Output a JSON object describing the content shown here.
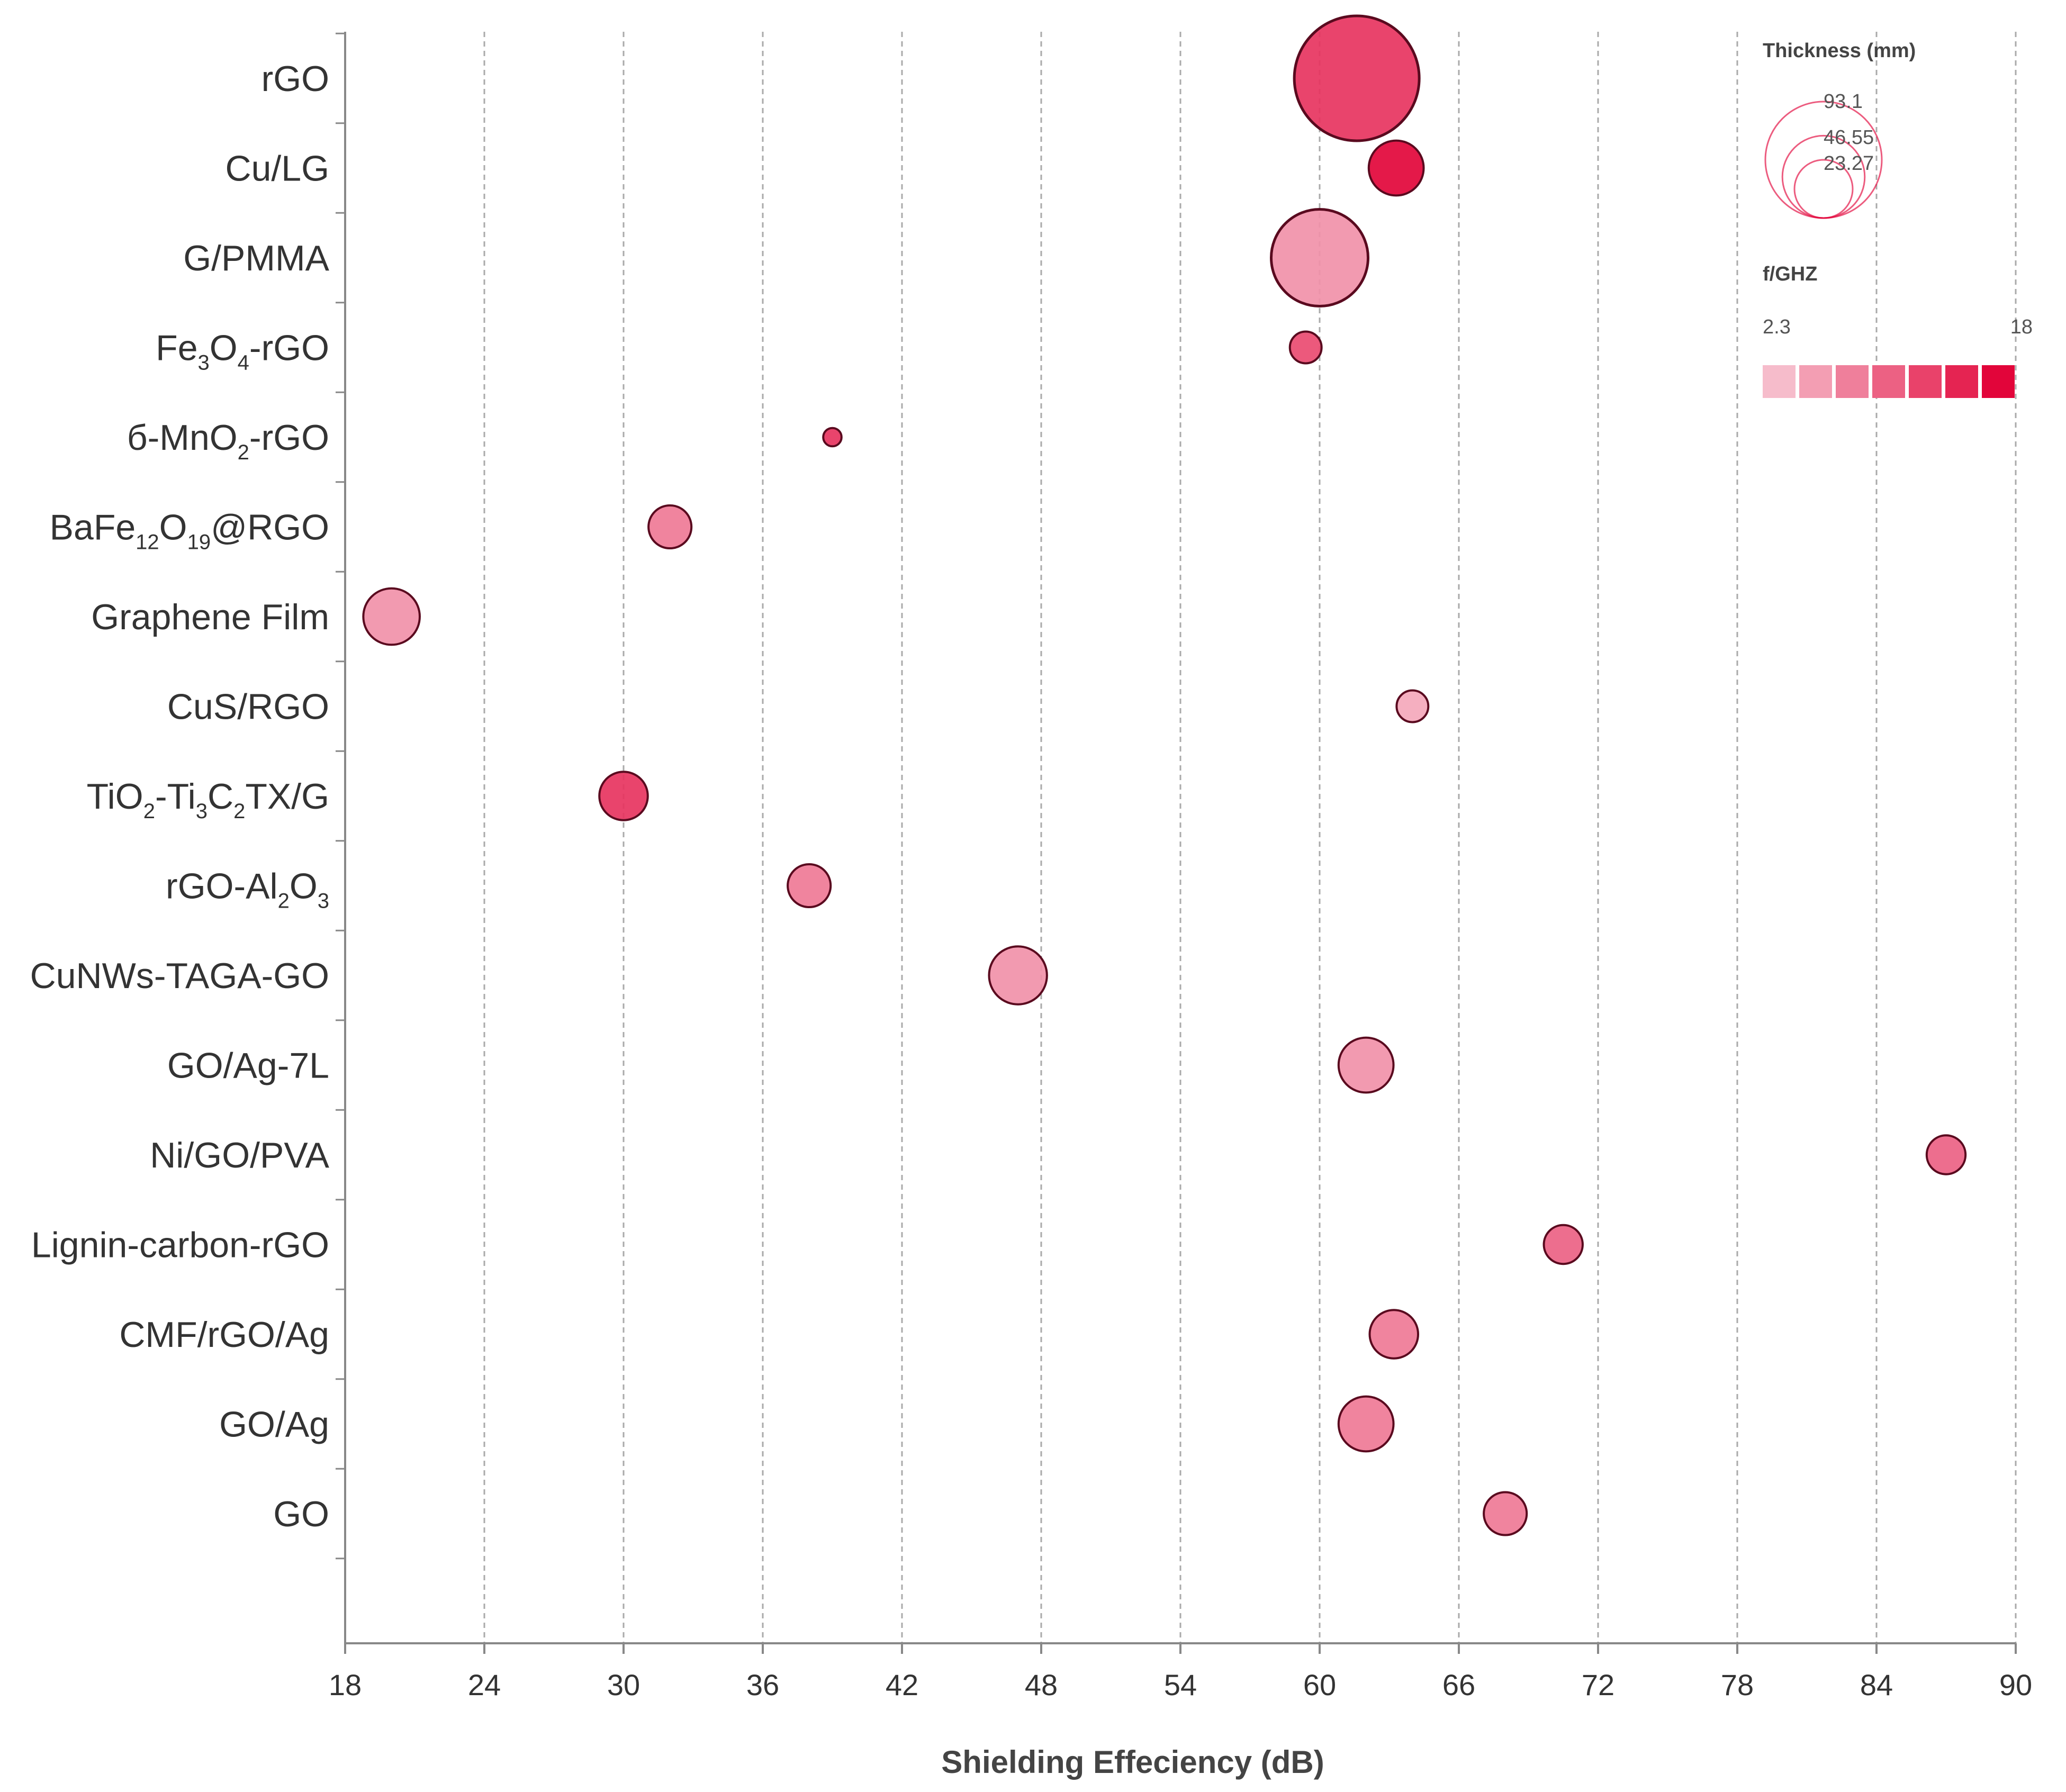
{
  "chart_data": {
    "type": "scatter",
    "subtype": "bubble",
    "xlabel": "Shielding Effeciency (dB)",
    "ylabel": "",
    "xlim": [
      18,
      90
    ],
    "xticks": [
      "18",
      "24",
      "30",
      "36",
      "42",
      "48",
      "54",
      "60",
      "66",
      "72",
      "78",
      "84",
      "90"
    ],
    "grid": "vertical dashed",
    "points": [
      {
        "label": "rGO",
        "label_parts": [
          {
            "t": "rGO"
          }
        ],
        "x": 61.6,
        "thickness": 93.1,
        "freq": 14
      },
      {
        "label": "Cu/LG",
        "label_parts": [
          {
            "t": "Cu/LG"
          }
        ],
        "x": 63.3,
        "thickness": 18,
        "freq": 18
      },
      {
        "label": "G/PMMA",
        "label_parts": [
          {
            "t": "G/PMMA"
          }
        ],
        "x": 60.0,
        "thickness": 56,
        "freq": 6
      },
      {
        "label": "Fe3O4-rGO",
        "label_parts": [
          {
            "t": "Fe"
          },
          {
            "t": "3",
            "sub": true
          },
          {
            "t": "O"
          },
          {
            "t": "4",
            "sub": true
          },
          {
            "t": "-rGO"
          }
        ],
        "x": 59.4,
        "thickness": 6,
        "freq": 12
      },
      {
        "label": "б-MnO2-rGO",
        "label_parts": [
          {
            "t": "б-MnO"
          },
          {
            "t": "2",
            "sub": true
          },
          {
            "t": "-rGO"
          }
        ],
        "x": 39.0,
        "thickness": 2,
        "freq": 14
      },
      {
        "label": "BaFe12O19@RGO",
        "label_parts": [
          {
            "t": "BaFe"
          },
          {
            "t": "12",
            "sub": true
          },
          {
            "t": "O"
          },
          {
            "t": "19",
            "sub": true
          },
          {
            "t": "@RGO"
          }
        ],
        "x": 32.0,
        "thickness": 11,
        "freq": 8
      },
      {
        "label": "Graphene Film",
        "label_parts": [
          {
            "t": "Graphene Film"
          }
        ],
        "x": 20.0,
        "thickness": 19,
        "freq": 6
      },
      {
        "label": "CuS/RGO",
        "label_parts": [
          {
            "t": "CuS/RGO"
          }
        ],
        "x": 64.0,
        "thickness": 6,
        "freq": 4
      },
      {
        "label": "TiO2-Ti3C2TX/G",
        "label_parts": [
          {
            "t": "TiO"
          },
          {
            "t": "2",
            "sub": true
          },
          {
            "t": "-Ti"
          },
          {
            "t": "3",
            "sub": true
          },
          {
            "t": "C"
          },
          {
            "t": "2",
            "sub": true
          },
          {
            "t": "TX/G"
          }
        ],
        "x": 30.0,
        "thickness": 14,
        "freq": 14
      },
      {
        "label": "rGO-Al2O3",
        "label_parts": [
          {
            "t": "rGO-Al"
          },
          {
            "t": "2",
            "sub": true
          },
          {
            "t": "O"
          },
          {
            "t": "3",
            "sub": true
          }
        ],
        "x": 38.0,
        "thickness": 11,
        "freq": 8
      },
      {
        "label": "CuNWs-TAGA-GO",
        "label_parts": [
          {
            "t": "CuNWs-TAGA-GO"
          }
        ],
        "x": 47.0,
        "thickness": 20,
        "freq": 6
      },
      {
        "label": "GO/Ag-7L",
        "label_parts": [
          {
            "t": "GO/Ag-7L"
          }
        ],
        "x": 62.0,
        "thickness": 18,
        "freq": 6
      },
      {
        "label": "Ni/GO/PVA",
        "label_parts": [
          {
            "t": "Ni/GO/PVA"
          }
        ],
        "x": 87.0,
        "thickness": 9,
        "freq": 10
      },
      {
        "label": "Lignin-carbon-rGO",
        "label_parts": [
          {
            "t": "Lignin-carbon-rGO"
          }
        ],
        "x": 70.5,
        "thickness": 9,
        "freq": 10
      },
      {
        "label": "CMF/rGO/Ag",
        "label_parts": [
          {
            "t": "CMF/rGO/Ag"
          }
        ],
        "x": 63.2,
        "thickness": 14,
        "freq": 8
      },
      {
        "label": "GO/Ag",
        "label_parts": [
          {
            "t": "GO/Ag"
          }
        ],
        "x": 62.0,
        "thickness": 18,
        "freq": 8
      },
      {
        "label": "GO",
        "label_parts": [
          {
            "t": "GO"
          }
        ],
        "x": 68.0,
        "thickness": 11,
        "freq": 8
      }
    ],
    "size_legend": {
      "title": "Thickness (mm)",
      "values": [
        93.1,
        46.55,
        23.27
      ],
      "labels": [
        "93.1",
        "46.55",
        "23.27"
      ]
    },
    "color_legend": {
      "title": "f/GHZ",
      "min_label": "2.3",
      "max_label": "18",
      "min": 2.3,
      "max": 18,
      "steps": 7
    },
    "colors": {
      "low": "#f6bccb",
      "high": "#e2053a",
      "stroke": "#5a0a1f",
      "grid": "#aaaaaa",
      "axis": "#888888"
    }
  }
}
